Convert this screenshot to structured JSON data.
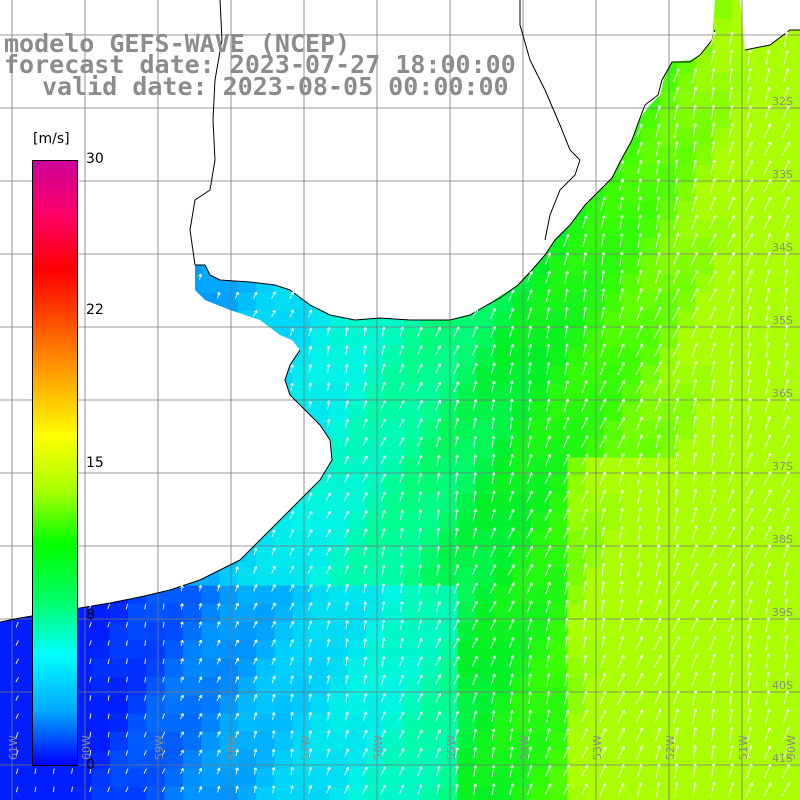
{
  "title": {
    "model": "modelo GEFS-WAVE (NCEP)",
    "forecast_date": "forecast date: 2023-07-27 18:00:00",
    "valid_date": "valid date: 2023-08-05 00:00:00"
  },
  "colorbar": {
    "unit": "[m/s]",
    "ticks": [
      "30",
      "22",
      "15",
      "8",
      "0"
    ],
    "tick_values": [
      30,
      22,
      15,
      8,
      0
    ],
    "colors": [
      "#0000ff",
      "#00aaff",
      "#00ffff",
      "#00ff66",
      "#00ff00",
      "#aaff00",
      "#ffff00",
      "#ffaa00",
      "#ff5500",
      "#ff0000",
      "#ff0066",
      "#cc0099"
    ]
  },
  "map": {
    "lon_labels": [
      "61W",
      "60W",
      "59W",
      "58W",
      "57W",
      "56W",
      "55W",
      "54W",
      "53W",
      "52W",
      "51W",
      "50W"
    ],
    "lat_labels": [
      "32S",
      "33S",
      "34S",
      "35S",
      "36S",
      "37S",
      "38S",
      "39S",
      "40S",
      "41S"
    ],
    "land_color": "#ffffff",
    "coast_color": "#000000",
    "grid_color": "#777777",
    "arrow_color": "#ffffff"
  }
}
